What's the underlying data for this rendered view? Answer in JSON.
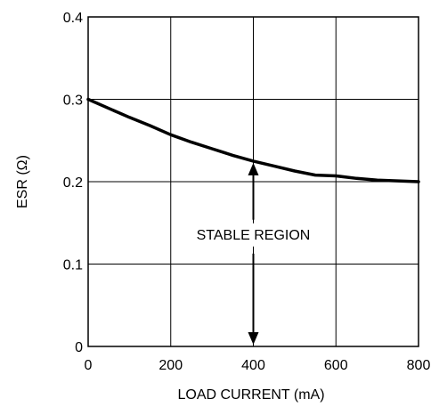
{
  "chart_data": {
    "type": "line",
    "xlabel": "LOAD CURRENT (mA)",
    "ylabel": "ESR (Ω)",
    "xlim": [
      0,
      800
    ],
    "ylim": [
      0,
      0.4
    ],
    "x_ticks": [
      "0",
      "200",
      "400",
      "600",
      "800"
    ],
    "y_ticks": [
      "0",
      "0.1",
      "0.2",
      "0.3",
      "0.4"
    ],
    "grid": true,
    "series": [
      {
        "x": [
          0,
          50,
          100,
          150,
          200,
          250,
          300,
          350,
          400,
          450,
          500,
          550,
          600,
          650,
          700,
          750,
          800
        ],
        "y": [
          0.3,
          0.289,
          0.278,
          0.268,
          0.257,
          0.248,
          0.24,
          0.232,
          0.225,
          0.219,
          0.213,
          0.208,
          0.207,
          0.204,
          0.202,
          0.201,
          0.2
        ]
      }
    ],
    "annotation": {
      "text": "STABLE REGION",
      "x": 400,
      "arrow_from": 0.225,
      "arrow_to": 0.0
    }
  }
}
